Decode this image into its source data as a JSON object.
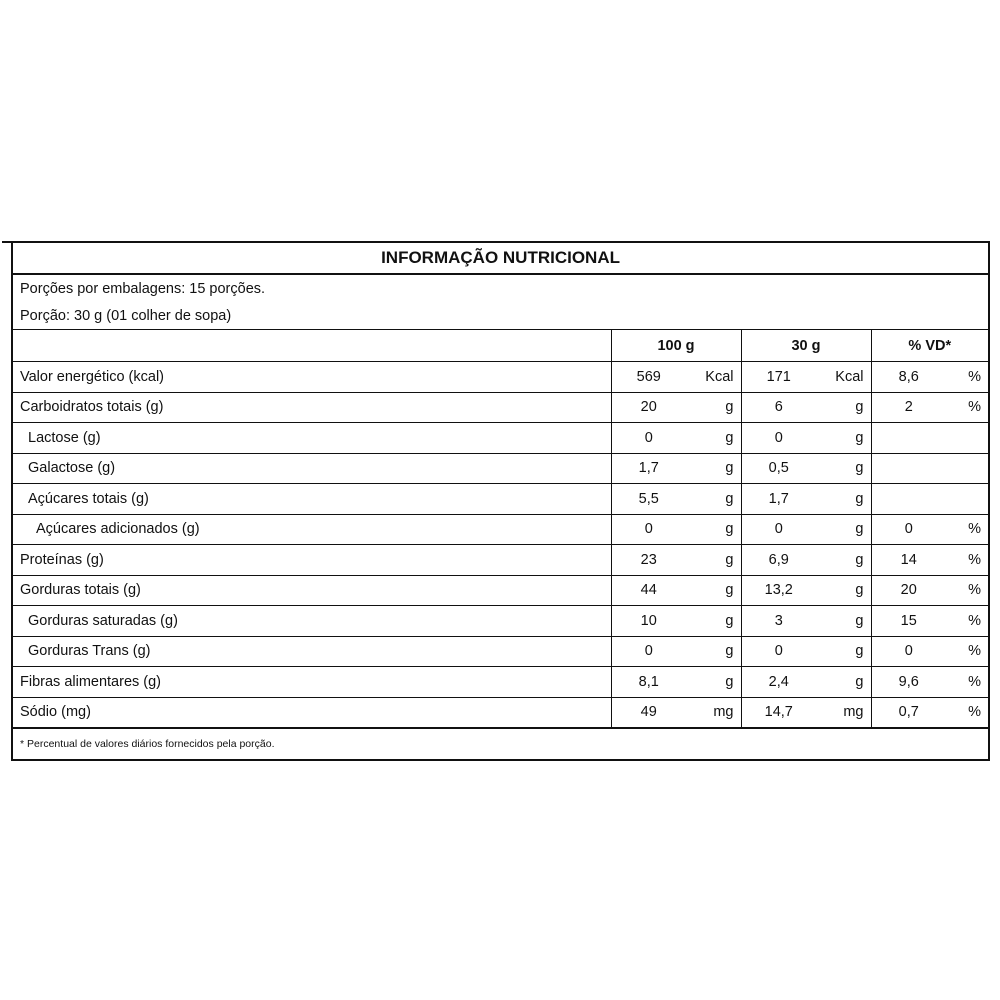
{
  "title": "INFORMAÇÃO NUTRICIONAL",
  "servings_per_package": "Porções por embalagens: 15 porções.",
  "serving_size": "Porção: 30 g  (01 colher de sopa)",
  "headers": [
    "100 g",
    "30 g",
    "% VD*"
  ],
  "rows": [
    {
      "label": "Valor energético (kcal)",
      "indent": 0,
      "v100": "569",
      "u100": "Kcal",
      "v30": "171",
      "u30": "Kcal",
      "vd": "8,6",
      "vdu": "%"
    },
    {
      "label": "Carboidratos totais (g)",
      "indent": 0,
      "v100": "20",
      "u100": "g",
      "v30": "6",
      "u30": "g",
      "vd": "2",
      "vdu": "%"
    },
    {
      "label": "Lactose (g)",
      "indent": 1,
      "v100": "0",
      "u100": "g",
      "v30": "0",
      "u30": "g",
      "vd": "",
      "vdu": ""
    },
    {
      "label": "Galactose (g)",
      "indent": 1,
      "v100": "1,7",
      "u100": "g",
      "v30": "0,5",
      "u30": "g",
      "vd": "",
      "vdu": ""
    },
    {
      "label": "Açúcares totais (g)",
      "indent": 1,
      "v100": "5,5",
      "u100": "g",
      "v30": "1,7",
      "u30": "g",
      "vd": "",
      "vdu": ""
    },
    {
      "label": "Açúcares adicionados (g)",
      "indent": 2,
      "v100": "0",
      "u100": "g",
      "v30": "0",
      "u30": "g",
      "vd": "0",
      "vdu": "%"
    },
    {
      "label": "Proteínas (g)",
      "indent": 0,
      "v100": "23",
      "u100": "g",
      "v30": "6,9",
      "u30": "g",
      "vd": "14",
      "vdu": "%"
    },
    {
      "label": "Gorduras totais (g)",
      "indent": 0,
      "v100": "44",
      "u100": "g",
      "v30": "13,2",
      "u30": "g",
      "vd": "20",
      "vdu": "%"
    },
    {
      "label": "Gorduras saturadas (g)",
      "indent": 1,
      "v100": "10",
      "u100": "g",
      "v30": "3",
      "u30": "g",
      "vd": "15",
      "vdu": "%"
    },
    {
      "label": "Gorduras Trans (g)",
      "indent": 1,
      "v100": "0",
      "u100": "g",
      "v30": "0",
      "u30": "g",
      "vd": "0",
      "vdu": "%"
    },
    {
      "label": "Fibras alimentares (g)",
      "indent": 0,
      "v100": "8,1",
      "u100": "g",
      "v30": "2,4",
      "u30": "g",
      "vd": "9,6",
      "vdu": "%"
    },
    {
      "label": "Sódio (mg)",
      "indent": 0,
      "v100": "49",
      "u100": "mg",
      "v30": "14,7",
      "u30": "mg",
      "vd": "0,7",
      "vdu": "%"
    }
  ],
  "footnote": "* Percentual de valores diários fornecidos pela porção."
}
